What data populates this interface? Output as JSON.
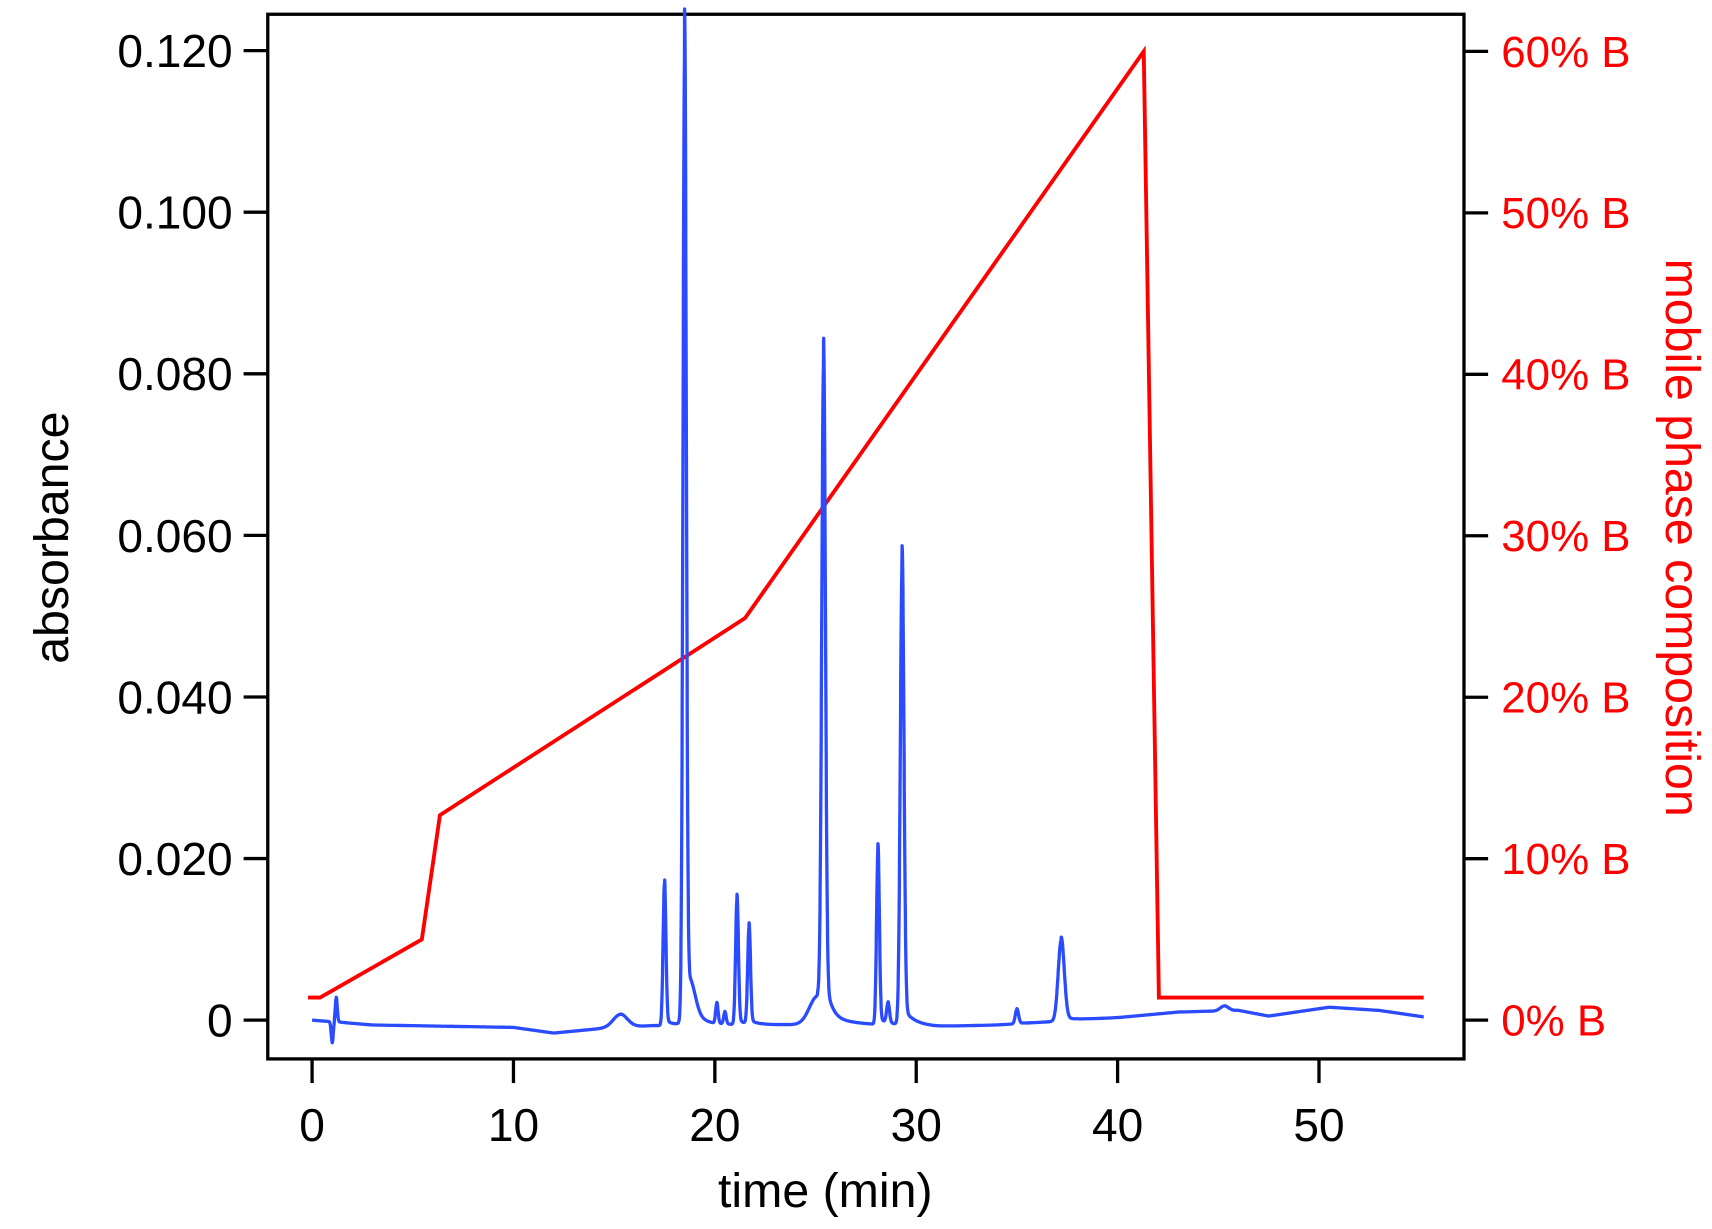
{
  "chart_data": {
    "type": "line",
    "title": "",
    "xlabel": "time (min)",
    "ylabel": "absorbance",
    "y2label": "mobile phase composition",
    "xlim": [
      -2.2,
      57.2
    ],
    "ylim": [
      -0.0048,
      0.1245
    ],
    "y2lim": [
      -2.4,
      62.3
    ],
    "xticks": [
      0,
      10,
      20,
      30,
      40,
      50
    ],
    "xtick_labels": [
      "0",
      "10",
      "20",
      "30",
      "40",
      "50"
    ],
    "yticks": [
      0,
      0.02,
      0.04,
      0.06,
      0.08,
      0.1,
      0.12
    ],
    "ytick_labels": [
      "0",
      "0.020",
      "0.040",
      "0.060",
      "0.080",
      "0.100",
      "0.120"
    ],
    "y2ticks": [
      0,
      10,
      20,
      30,
      40,
      50,
      60
    ],
    "y2tick_labels": [
      "0% B",
      "10% B",
      "20% B",
      "30% B",
      "40% B",
      "50% B",
      "60% B"
    ],
    "grid": false,
    "series": [
      {
        "name": "absorbance",
        "axis": "left",
        "color": "#2a4bff",
        "baseline": [
          [
            0,
            0
          ],
          [
            1.5,
            -0.0003
          ],
          [
            3,
            -0.0006
          ],
          [
            10,
            -0.0009
          ],
          [
            12,
            -0.0016
          ],
          [
            14.5,
            -0.001
          ],
          [
            17,
            -0.0007
          ],
          [
            22,
            -0.0006
          ],
          [
            27,
            -0.0005
          ],
          [
            31,
            -0.0008
          ],
          [
            34,
            -0.0006
          ],
          [
            36,
            -0.0003
          ],
          [
            40,
            0.0003
          ],
          [
            43,
            0.001
          ],
          [
            46,
            0.0012
          ],
          [
            47.5,
            0.0005
          ],
          [
            50.5,
            0.0016
          ],
          [
            53,
            0.0012
          ],
          [
            55.2,
            0.0004
          ]
        ],
        "peaks": [
          {
            "t": 1.0,
            "h": -0.0025,
            "w": 0.05
          },
          {
            "t": 1.2,
            "h": 0.003,
            "w": 0.05
          },
          {
            "t": 15.3,
            "h": 0.0016,
            "w": 0.35
          },
          {
            "t": 17.5,
            "h": 0.0175,
            "w": 0.07
          },
          {
            "t": 18.5,
            "h": 0.1195,
            "w": 0.08
          },
          {
            "t": 18.8,
            "h": 0.003,
            "w": 0.25
          },
          {
            "t": 20.1,
            "h": 0.0025,
            "w": 0.06
          },
          {
            "t": 20.5,
            "h": 0.0015,
            "w": 0.06
          },
          {
            "t": 21.1,
            "h": 0.0155,
            "w": 0.07
          },
          {
            "t": 21.7,
            "h": 0.012,
            "w": 0.07
          },
          {
            "t": 25.4,
            "h": 0.079,
            "w": 0.09
          },
          {
            "t": 25.1,
            "h": 0.0035,
            "w": 0.4
          },
          {
            "t": 28.1,
            "h": 0.0215,
            "w": 0.07
          },
          {
            "t": 28.6,
            "h": 0.0025,
            "w": 0.07
          },
          {
            "t": 29.3,
            "h": 0.057,
            "w": 0.09
          },
          {
            "t": 35.0,
            "h": 0.0018,
            "w": 0.08
          },
          {
            "t": 37.2,
            "h": 0.01,
            "w": 0.15
          },
          {
            "t": 45.3,
            "h": 0.0006,
            "w": 0.2
          }
        ]
      },
      {
        "name": "mobile phase composition (%B)",
        "axis": "right",
        "color": "#ff0000",
        "points": [
          [
            -0.2,
            1.4
          ],
          [
            0.4,
            1.4
          ],
          [
            5.45,
            5.0
          ],
          [
            6.35,
            12.7
          ],
          [
            21.5,
            24.9
          ],
          [
            41.3,
            60.0
          ],
          [
            42.05,
            1.4
          ],
          [
            55.2,
            1.4
          ]
        ]
      }
    ]
  }
}
